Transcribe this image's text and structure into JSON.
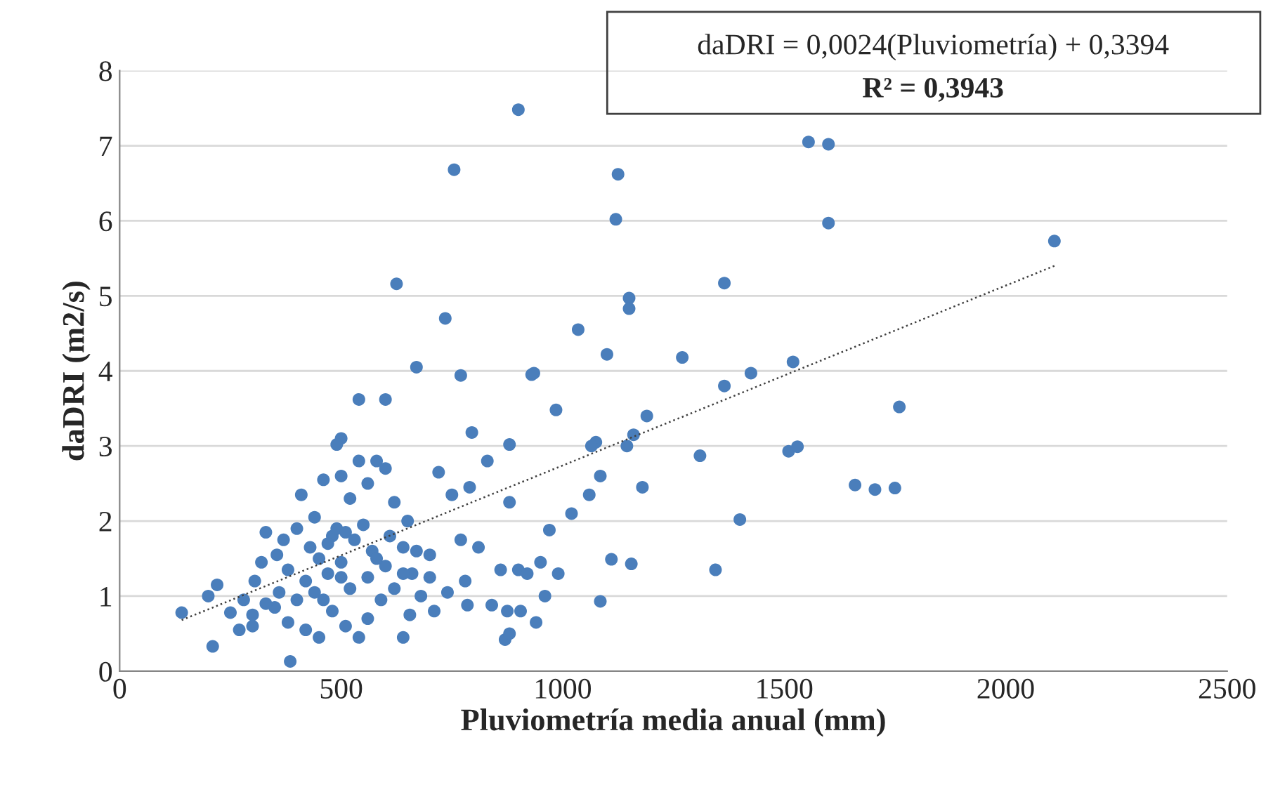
{
  "chart_data": {
    "type": "scatter",
    "xlabel": "Pluviometría media anual (mm)",
    "ylabel": "daDRI (m2/s)",
    "xlim": [
      0,
      2500
    ],
    "xticks": [
      0,
      500,
      1000,
      1500,
      2000,
      2500
    ],
    "ylim": [
      0,
      8
    ],
    "yticks": [
      0,
      1,
      2,
      3,
      4,
      5,
      6,
      7,
      8
    ],
    "grid": "y",
    "marker": "circle",
    "annotations": [
      "daDRI = 0,0024(Pluviometría) + 0,3394",
      "R² = 0,3943"
    ],
    "series": [
      {
        "color": "#4a7ebb",
        "x": [
          900,
          755,
          1125,
          1120,
          1555,
          1600,
          1600,
          2110,
          625,
          735,
          1365,
          1150,
          1150,
          1035,
          670,
          770,
          930,
          935,
          1100,
          1270,
          1425,
          1520,
          1365,
          1760,
          540,
          600,
          985,
          1190,
          1160,
          1075,
          1065,
          1145,
          795,
          880,
          500,
          490,
          1310,
          1510,
          1530,
          1660,
          1705,
          1750,
          1180,
          1060,
          1085,
          1400,
          1020,
          970,
          1110,
          1155,
          1345,
          1085,
          870,
          940,
          905,
          875,
          840,
          785,
          880,
          710,
          655,
          640,
          385,
          210,
          140,
          200,
          220,
          250,
          270,
          300,
          280,
          305,
          320,
          330,
          355,
          370,
          380,
          400,
          410,
          440,
          460,
          480,
          500,
          520,
          540,
          560,
          580,
          600,
          620,
          640,
          650,
          660,
          680,
          700,
          720,
          750,
          790,
          770,
          780,
          810,
          830,
          860,
          880,
          900,
          920,
          950,
          960,
          990,
          350,
          380,
          420,
          450,
          480,
          510,
          540,
          560,
          590,
          620,
          450,
          470,
          490,
          510,
          530,
          550,
          570,
          600,
          420,
          440,
          460,
          500,
          520,
          400,
          360,
          330,
          300,
          560,
          580,
          610,
          500,
          470,
          430,
          640,
          700,
          740,
          670
        ],
        "values": [
          7.48,
          6.68,
          6.62,
          6.02,
          7.05,
          7.02,
          5.97,
          5.73,
          5.16,
          4.7,
          5.17,
          4.97,
          4.83,
          4.55,
          4.05,
          3.94,
          3.95,
          3.97,
          4.22,
          4.18,
          3.97,
          4.12,
          3.8,
          3.52,
          3.62,
          3.62,
          3.48,
          3.4,
          3.15,
          3.05,
          3.0,
          3.0,
          3.18,
          3.02,
          3.1,
          3.02,
          2.87,
          2.93,
          2.99,
          2.48,
          2.42,
          2.44,
          2.45,
          2.35,
          2.6,
          2.02,
          2.1,
          1.88,
          1.49,
          1.43,
          1.35,
          0.93,
          0.42,
          0.65,
          0.8,
          0.8,
          0.88,
          0.88,
          0.5,
          0.8,
          0.75,
          0.45,
          0.13,
          0.33,
          0.78,
          1.0,
          1.15,
          0.78,
          0.55,
          0.6,
          0.95,
          1.2,
          1.45,
          1.85,
          1.55,
          1.75,
          1.35,
          1.9,
          2.35,
          2.05,
          2.55,
          1.8,
          2.6,
          2.3,
          2.8,
          2.5,
          2.8,
          2.7,
          2.25,
          1.65,
          2.0,
          1.3,
          1.0,
          1.55,
          2.65,
          2.35,
          2.45,
          1.75,
          1.2,
          1.65,
          2.8,
          1.35,
          2.25,
          1.35,
          1.3,
          1.45,
          1.0,
          1.3,
          0.85,
          0.65,
          0.55,
          0.45,
          0.8,
          0.6,
          0.45,
          0.7,
          0.95,
          1.1,
          1.5,
          1.7,
          1.9,
          1.85,
          1.75,
          1.95,
          1.6,
          1.4,
          1.2,
          1.05,
          0.95,
          1.25,
          1.1,
          0.95,
          1.05,
          0.9,
          0.75,
          1.25,
          1.5,
          1.8,
          1.45,
          1.3,
          1.65,
          1.3,
          1.25,
          1.05,
          1.6
        ]
      },
      {
        "type": "line",
        "color": "#404040",
        "line_style": "dotted",
        "marker": "none",
        "x": [
          140,
          2110
        ],
        "values": [
          0.68,
          5.4
        ]
      }
    ]
  }
}
